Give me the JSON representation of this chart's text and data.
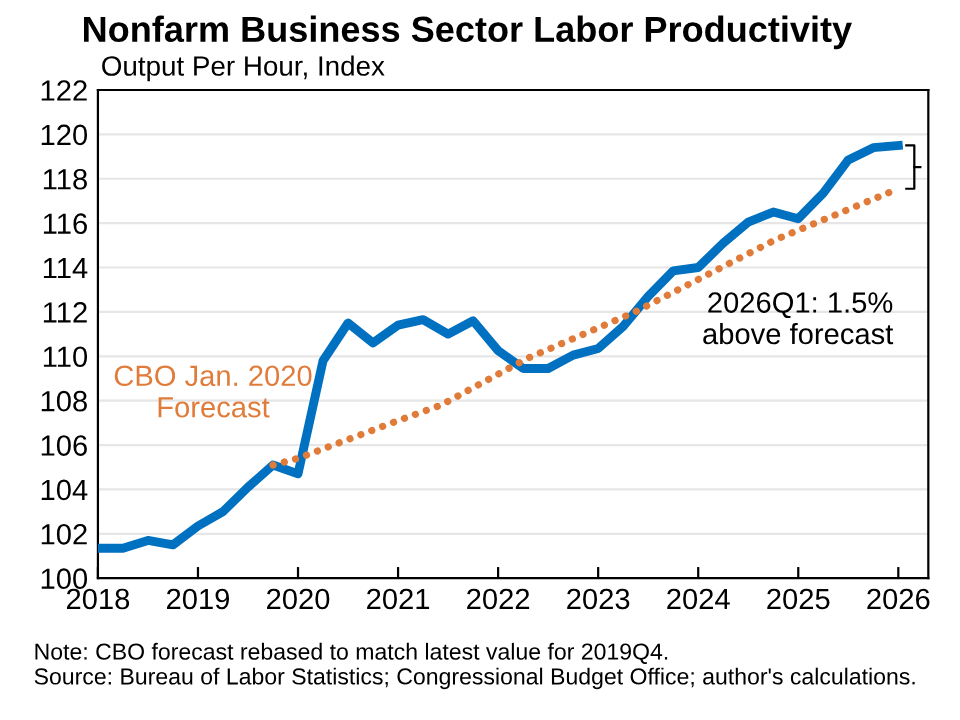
{
  "chart_data": {
    "type": "line",
    "title": "Nonfarm Business Sector Labor Productivity",
    "subtitle": "Output Per Hour, Index",
    "series": [
      {
        "color": "#0070c0",
        "line_style": "solid",
        "x": [
          2018.0,
          2018.25,
          2018.5,
          2018.75,
          2019.0,
          2019.25,
          2019.5,
          2019.75,
          2020.0,
          2020.25,
          2020.5,
          2020.75,
          2021.0,
          2021.25,
          2021.5,
          2021.75,
          2022.0,
          2022.25,
          2022.5,
          2022.75,
          2023.0,
          2023.25,
          2023.5,
          2023.75,
          2024.0,
          2024.25,
          2024.5,
          2024.75,
          2025.0,
          2025.25,
          2025.5,
          2025.75,
          2026.0
        ],
        "values": [
          101.35,
          101.35,
          101.7,
          101.5,
          102.35,
          103.0,
          104.1,
          105.1,
          104.7,
          109.8,
          111.5,
          110.6,
          111.4,
          111.65,
          111.0,
          111.6,
          110.25,
          109.45,
          109.45,
          110.05,
          110.35,
          111.35,
          112.7,
          113.85,
          114.0,
          115.1,
          116.05,
          116.5,
          116.2,
          117.35,
          118.85,
          119.4,
          119.5
        ]
      },
      {
        "name": "CBO Jan. 2020\nForecast",
        "color": "#e07b39",
        "line_style": "dotted",
        "x": [
          2019.75,
          2020.0,
          2021.0,
          2021.43,
          2022.29,
          2023.37,
          2024.77,
          2026.0
        ],
        "values": [
          105.1,
          105.4,
          107.1,
          107.8,
          109.9,
          112.0,
          115.25,
          117.55
        ]
      }
    ],
    "xlim": [
      2018,
      2026.3
    ],
    "xticks": [
      2018,
      2019,
      2020,
      2021,
      2022,
      2023,
      2024,
      2025,
      2026
    ],
    "ylim": [
      100,
      122
    ],
    "yticks": [
      100,
      102,
      104,
      106,
      108,
      110,
      112,
      114,
      116,
      118,
      120,
      122
    ],
    "grid": "y",
    "legend": false,
    "marker": "none",
    "annotations": [
      "2026Q1: 1.5%\nabove forecast",
      "Note: CBO forecast rebased to match latest value for 2019Q4.\nSource: Bureau of Labor Statistics; Congressional Budget Office; author's calculations."
    ]
  }
}
